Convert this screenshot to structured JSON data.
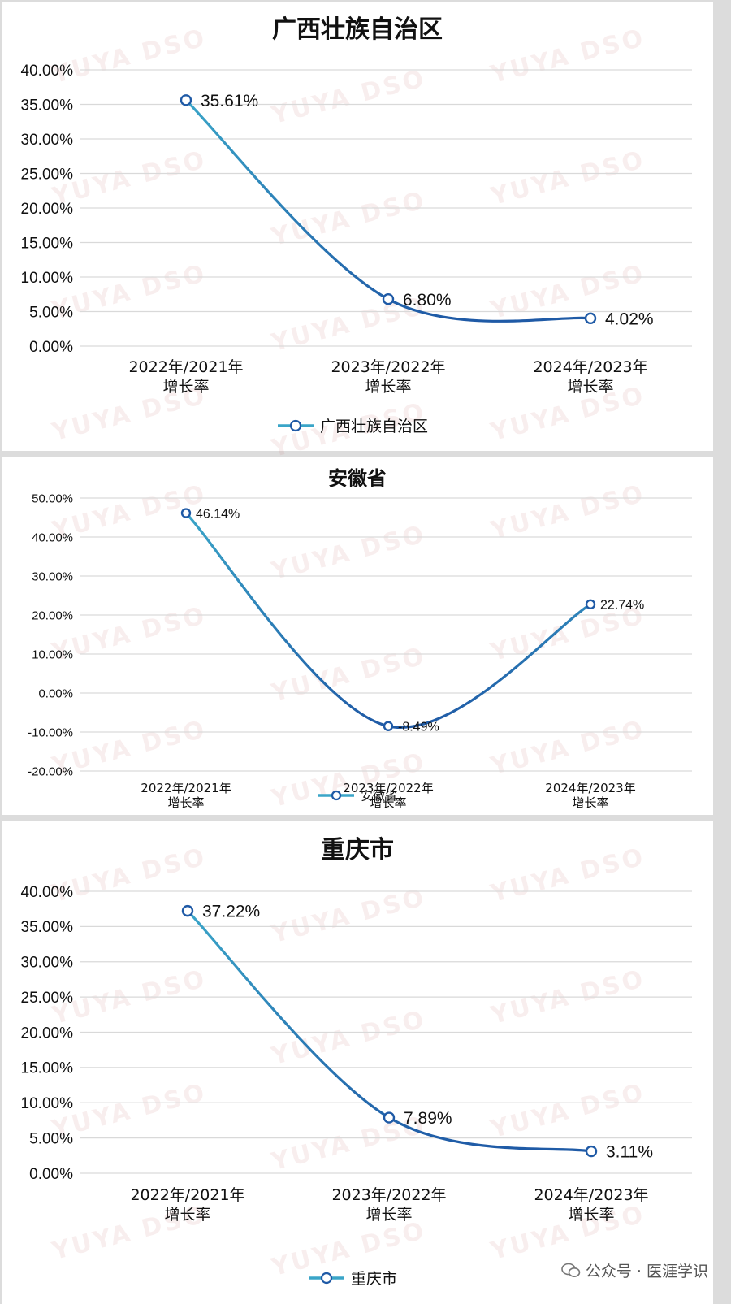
{
  "colors": {
    "line_light": "#3aa5c8",
    "line_dark": "#1f5aa6",
    "grid": "#d9d9d9",
    "marker_fill": "#ffffff"
  },
  "watermark": {
    "text": "YUYA DSO"
  },
  "footer": {
    "text": "公众号 · 医涯学识",
    "icon": "wechat-icon"
  },
  "chart_data": [
    {
      "type": "line",
      "title": "广西壮族自治区",
      "categories": [
        [
          "2022年/2021年",
          "增长率"
        ],
        [
          "2023年/2022年",
          "增长率"
        ],
        [
          "2024年/2023年",
          "增长率"
        ]
      ],
      "series": [
        {
          "name": "广西壮族自治区",
          "values": [
            35.61,
            6.8,
            4.02
          ],
          "labels": [
            "35.61%",
            "6.80%",
            "4.02%"
          ]
        }
      ],
      "ylim": [
        0,
        40
      ],
      "yticks": [
        "0.00%",
        "5.00%",
        "10.00%",
        "15.00%",
        "20.00%",
        "25.00%",
        "30.00%",
        "35.00%",
        "40.00%"
      ],
      "grid": true,
      "legend": "bottom"
    },
    {
      "type": "line",
      "title": "安徽省",
      "categories": [
        [
          "2022年/2021年",
          "增长率"
        ],
        [
          "2023年/2022年",
          "增长率"
        ],
        [
          "2024年/2023年",
          "增长率"
        ]
      ],
      "series": [
        {
          "name": "安徽省",
          "values": [
            46.14,
            -8.49,
            22.74
          ],
          "labels": [
            "46.14%",
            "-8.49%",
            "22.74%"
          ]
        }
      ],
      "ylim": [
        -20,
        50
      ],
      "yticks": [
        "-20.00%",
        "-10.00%",
        "0.00%",
        "10.00%",
        "20.00%",
        "30.00%",
        "40.00%",
        "50.00%"
      ],
      "grid": true,
      "legend": "bottom"
    },
    {
      "type": "line",
      "title": "重庆市",
      "categories": [
        [
          "2022年/2021年",
          "增长率"
        ],
        [
          "2023年/2022年",
          "增长率"
        ],
        [
          "2024年/2023年",
          "增长率"
        ]
      ],
      "series": [
        {
          "name": "重庆市",
          "values": [
            37.22,
            7.89,
            3.11
          ],
          "labels": [
            "37.22%",
            "7.89%",
            "3.11%"
          ]
        }
      ],
      "ylim": [
        0,
        40
      ],
      "yticks": [
        "0.00%",
        "5.00%",
        "10.00%",
        "15.00%",
        "20.00%",
        "25.00%",
        "30.00%",
        "35.00%",
        "40.00%"
      ],
      "grid": true,
      "legend": "bottom"
    }
  ]
}
